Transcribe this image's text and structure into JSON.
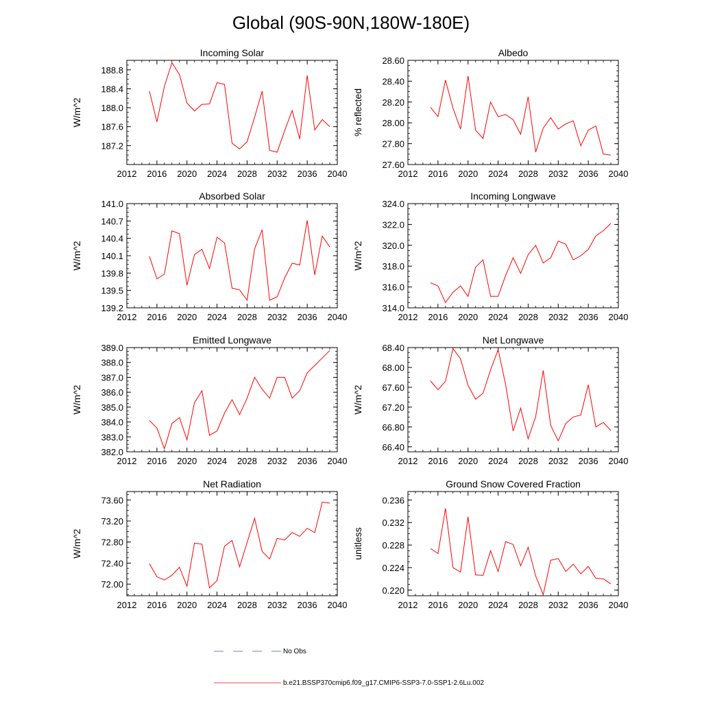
{
  "figure": {
    "title": "Global (90S-90N,180W-180E)",
    "legend": [
      {
        "label": "No Obs",
        "color": "#3b4cc0",
        "style": "dashed"
      },
      {
        "label": "b.e21.BSSP370cmip6.f09_g17.CMIP6-SSP3-7.0-SSP1-2.6Lu.002",
        "color": "#ff0000",
        "style": "solid"
      }
    ]
  },
  "chart_data": [
    {
      "type": "line",
      "title": "Incoming Solar",
      "ylabel": "W/m^2",
      "xlim": [
        2012,
        2040
      ],
      "xticks": [
        "2012",
        "2016",
        "2020",
        "2024",
        "2028",
        "2032",
        "2036",
        "2040"
      ],
      "ylim": [
        186.8,
        189.0
      ],
      "yticks": [
        "187.2",
        "187.6",
        "188.0",
        "188.4",
        "188.8"
      ],
      "x": [
        2015,
        2016,
        2017,
        2018,
        2019,
        2020,
        2021,
        2022,
        2023,
        2024,
        2025,
        2026,
        2027,
        2028,
        2029,
        2030,
        2031,
        2032,
        2033,
        2034,
        2035,
        2036,
        2037,
        2038,
        2039
      ],
      "series": [
        {
          "name": "b.e21.BSSP370cmip6.f09_g17.CMIP6-SSP3-7.0-SSP1-2.6Lu.002",
          "color": "#ff0000",
          "values": [
            188.35,
            187.7,
            188.45,
            188.95,
            188.7,
            188.1,
            187.93,
            188.07,
            188.08,
            188.53,
            188.49,
            187.25,
            187.13,
            187.28,
            187.8,
            188.35,
            187.1,
            187.06,
            187.52,
            187.94,
            187.34,
            188.68,
            187.53,
            187.75,
            187.6
          ]
        }
      ]
    },
    {
      "type": "line",
      "title": "Albedo",
      "ylabel": "% reflected",
      "xlim": [
        2012,
        2040
      ],
      "xticks": [
        "2012",
        "2016",
        "2020",
        "2024",
        "2028",
        "2032",
        "2036",
        "2040"
      ],
      "ylim": [
        27.6,
        28.6
      ],
      "yticks": [
        "27.60",
        "27.80",
        "28.00",
        "28.20",
        "28.40",
        "28.60"
      ],
      "x": [
        2015,
        2016,
        2017,
        2018,
        2019,
        2020,
        2021,
        2022,
        2023,
        2024,
        2025,
        2026,
        2027,
        2028,
        2029,
        2030,
        2031,
        2032,
        2033,
        2034,
        2035,
        2036,
        2037,
        2038,
        2039
      ],
      "series": [
        {
          "name": "b.e21.BSSP370cmip6.f09_g17.CMIP6-SSP3-7.0-SSP1-2.6Lu.002",
          "color": "#ff0000",
          "values": [
            28.15,
            28.06,
            28.41,
            28.14,
            27.94,
            28.45,
            27.93,
            27.85,
            28.2,
            28.06,
            28.08,
            28.03,
            27.89,
            28.25,
            27.72,
            27.95,
            28.05,
            27.94,
            27.99,
            28.02,
            27.78,
            27.93,
            27.97,
            27.7,
            27.69
          ]
        }
      ]
    },
    {
      "type": "line",
      "title": "Absorbed Solar",
      "ylabel": "W/m^2",
      "xlim": [
        2012,
        2040
      ],
      "xticks": [
        "2012",
        "2016",
        "2020",
        "2024",
        "2028",
        "2032",
        "2036",
        "2040"
      ],
      "ylim": [
        139.2,
        141.0
      ],
      "yticks": [
        "139.2",
        "139.5",
        "139.8",
        "140.1",
        "140.4",
        "140.7",
        "141.0"
      ],
      "x": [
        2015,
        2016,
        2017,
        2018,
        2019,
        2020,
        2021,
        2022,
        2023,
        2024,
        2025,
        2026,
        2027,
        2028,
        2029,
        2030,
        2031,
        2032,
        2033,
        2034,
        2035,
        2036,
        2037,
        2038,
        2039
      ],
      "series": [
        {
          "name": "b.e21.BSSP370cmip6.f09_g17.CMIP6-SSP3-7.0-SSP1-2.6Lu.002",
          "color": "#ff0000",
          "values": [
            140.09,
            139.7,
            139.78,
            140.53,
            140.48,
            139.59,
            140.12,
            140.21,
            139.88,
            140.42,
            140.32,
            139.54,
            139.51,
            139.33,
            140.22,
            140.55,
            139.33,
            139.39,
            139.72,
            139.97,
            139.94,
            140.71,
            139.77,
            140.44,
            140.25
          ]
        }
      ]
    },
    {
      "type": "line",
      "title": "Incoming Longwave",
      "ylabel": "W/m^2",
      "xlim": [
        2012,
        2040
      ],
      "xticks": [
        "2012",
        "2016",
        "2020",
        "2024",
        "2028",
        "2032",
        "2036",
        "2040"
      ],
      "ylim": [
        314.0,
        324.0
      ],
      "yticks": [
        "314.0",
        "316.0",
        "318.0",
        "320.0",
        "322.0",
        "324.0"
      ],
      "x": [
        2015,
        2016,
        2017,
        2018,
        2019,
        2020,
        2021,
        2022,
        2023,
        2024,
        2025,
        2026,
        2027,
        2028,
        2029,
        2030,
        2031,
        2032,
        2033,
        2034,
        2035,
        2036,
        2037,
        2038,
        2039
      ],
      "series": [
        {
          "name": "b.e21.BSSP370cmip6.f09_g17.CMIP6-SSP3-7.0-SSP1-2.6Lu.002",
          "color": "#ff0000",
          "values": [
            316.4,
            316.1,
            314.5,
            315.5,
            316.1,
            315.1,
            317.9,
            318.6,
            315.1,
            315.1,
            317.1,
            318.8,
            317.3,
            319.1,
            320.0,
            318.3,
            318.8,
            320.4,
            320.1,
            318.6,
            319.0,
            319.6,
            320.9,
            321.4,
            322.1
          ]
        }
      ]
    },
    {
      "type": "line",
      "title": "Emitted Longwave",
      "ylabel": "W/m^2",
      "xlim": [
        2012,
        2040
      ],
      "xticks": [
        "2012",
        "2016",
        "2020",
        "2024",
        "2028",
        "2032",
        "2036",
        "2040"
      ],
      "ylim": [
        382.0,
        389.0
      ],
      "yticks": [
        "382.0",
        "383.0",
        "384.0",
        "385.0",
        "386.0",
        "387.0",
        "388.0",
        "389.0"
      ],
      "x": [
        2015,
        2016,
        2017,
        2018,
        2019,
        2020,
        2021,
        2022,
        2023,
        2024,
        2025,
        2026,
        2027,
        2028,
        2029,
        2030,
        2031,
        2032,
        2033,
        2034,
        2035,
        2036,
        2037,
        2038,
        2039
      ],
      "series": [
        {
          "name": "b.e21.BSSP370cmip6.f09_g17.CMIP6-SSP3-7.0-SSP1-2.6Lu.002",
          "color": "#ff0000",
          "values": [
            384.1,
            383.6,
            382.2,
            383.9,
            384.3,
            382.8,
            385.3,
            386.1,
            383.1,
            383.4,
            384.6,
            385.5,
            384.5,
            385.6,
            387.0,
            386.2,
            385.6,
            387.0,
            387.0,
            385.6,
            386.1,
            387.3,
            387.8,
            388.3,
            388.8
          ]
        }
      ]
    },
    {
      "type": "line",
      "title": "Net Longwave",
      "ylabel": "W/m^2",
      "xlim": [
        2012,
        2040
      ],
      "xticks": [
        "2012",
        "2016",
        "2020",
        "2024",
        "2028",
        "2032",
        "2036",
        "2040"
      ],
      "ylim": [
        66.3,
        68.4
      ],
      "yticks": [
        "66.40",
        "66.80",
        "67.20",
        "67.60",
        "68.00",
        "68.40"
      ],
      "x": [
        2015,
        2016,
        2017,
        2018,
        2019,
        2020,
        2021,
        2022,
        2023,
        2024,
        2025,
        2026,
        2027,
        2028,
        2029,
        2030,
        2031,
        2032,
        2033,
        2034,
        2035,
        2036,
        2037,
        2038,
        2039
      ],
      "series": [
        {
          "name": "b.e21.BSSP370cmip6.f09_g17.CMIP6-SSP3-7.0-SSP1-2.6Lu.002",
          "color": "#ff0000",
          "values": [
            67.73,
            67.55,
            67.72,
            68.38,
            68.17,
            67.64,
            67.36,
            67.48,
            67.95,
            68.36,
            67.66,
            66.72,
            67.18,
            66.56,
            67.01,
            67.94,
            66.83,
            66.52,
            66.87,
            67.0,
            67.04,
            67.65,
            66.8,
            66.89,
            66.73
          ]
        }
      ]
    },
    {
      "type": "line",
      "title": "Net Radiation",
      "ylabel": "W/m^2",
      "xlim": [
        2012,
        2040
      ],
      "xticks": [
        "2012",
        "2016",
        "2020",
        "2024",
        "2028",
        "2032",
        "2036",
        "2040"
      ],
      "ylim": [
        71.78,
        73.76
      ],
      "yticks": [
        "72.00",
        "72.40",
        "72.80",
        "73.20",
        "73.60"
      ],
      "x": [
        2015,
        2016,
        2017,
        2018,
        2019,
        2020,
        2021,
        2022,
        2023,
        2024,
        2025,
        2026,
        2027,
        2028,
        2029,
        2030,
        2031,
        2032,
        2033,
        2034,
        2035,
        2036,
        2037,
        2038,
        2039
      ],
      "series": [
        {
          "name": "b.e21.BSSP370cmip6.f09_g17.CMIP6-SSP3-7.0-SSP1-2.6Lu.002",
          "color": "#ff0000",
          "values": [
            72.39,
            72.14,
            72.08,
            72.17,
            72.32,
            71.96,
            72.78,
            72.76,
            71.93,
            72.07,
            72.72,
            72.83,
            72.33,
            72.79,
            73.25,
            72.62,
            72.48,
            72.87,
            72.84,
            72.98,
            72.91,
            73.06,
            72.98,
            73.56,
            73.54
          ]
        }
      ]
    },
    {
      "type": "line",
      "title": "Ground Snow Covered Fraction",
      "ylabel": "unitless",
      "xlim": [
        2012,
        2040
      ],
      "xticks": [
        "2012",
        "2016",
        "2020",
        "2024",
        "2028",
        "2032",
        "2036",
        "2040"
      ],
      "ylim": [
        0.219,
        0.2375
      ],
      "yticks": [
        "0.220",
        "0.224",
        "0.228",
        "0.232",
        "0.236"
      ],
      "x": [
        2015,
        2016,
        2017,
        2018,
        2019,
        2020,
        2021,
        2022,
        2023,
        2024,
        2025,
        2026,
        2027,
        2028,
        2029,
        2030,
        2031,
        2032,
        2033,
        2034,
        2035,
        2036,
        2037,
        2038,
        2039
      ],
      "series": [
        {
          "name": "b.e21.BSSP370cmip6.f09_g17.CMIP6-SSP3-7.0-SSP1-2.6Lu.002",
          "color": "#ff0000",
          "values": [
            0.2274,
            0.2265,
            0.2345,
            0.224,
            0.2232,
            0.233,
            0.2227,
            0.2226,
            0.227,
            0.2233,
            0.2286,
            0.2281,
            0.2243,
            0.2276,
            0.2225,
            0.2192,
            0.2253,
            0.2256,
            0.2233,
            0.2246,
            0.2229,
            0.2242,
            0.2221,
            0.222,
            0.2211
          ]
        }
      ]
    }
  ]
}
